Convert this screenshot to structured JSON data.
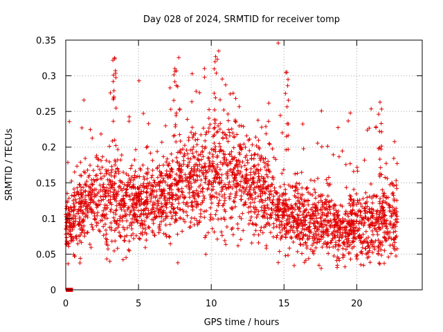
{
  "chart_data": {
    "type": "scatter",
    "title": "Day 028 of 2024, SRMTID for receiver tomp",
    "xlabel": "GPS time / hours",
    "ylabel": "SRMTID / TECUs",
    "xlim": [
      0,
      24.5
    ],
    "ylim": [
      0,
      0.35
    ],
    "xticks": [
      0,
      5,
      10,
      15,
      20
    ],
    "xtick_labels": [
      "0",
      "5",
      "10",
      "15",
      "20"
    ],
    "yticks": [
      0,
      0.05,
      0.1,
      0.15,
      0.2,
      0.25,
      0.3,
      0.35
    ],
    "ytick_labels": [
      "0",
      "0.05",
      "0.1",
      "0.15",
      "0.2",
      "0.25",
      "0.3",
      "0.35"
    ],
    "grid": true,
    "marker": "plus",
    "series_color": "#e00000",
    "envelope": {
      "hours": [
        0.0,
        1.0,
        2.0,
        3.0,
        4.0,
        5.0,
        6.0,
        7.0,
        8.0,
        9.0,
        10.0,
        11.0,
        12.0,
        13.0,
        14.0,
        15.0,
        16.0,
        17.0,
        18.0,
        19.0,
        20.0,
        21.0,
        22.0,
        22.8
      ],
      "center": [
        0.09,
        0.11,
        0.13,
        0.13,
        0.12,
        0.12,
        0.12,
        0.13,
        0.15,
        0.16,
        0.16,
        0.17,
        0.15,
        0.14,
        0.13,
        0.11,
        0.1,
        0.095,
        0.1,
        0.08,
        0.09,
        0.085,
        0.1,
        0.09
      ],
      "spread": [
        0.025,
        0.03,
        0.035,
        0.04,
        0.035,
        0.035,
        0.035,
        0.035,
        0.04,
        0.04,
        0.045,
        0.045,
        0.045,
        0.04,
        0.035,
        0.03,
        0.03,
        0.03,
        0.03,
        0.025,
        0.03,
        0.03,
        0.035,
        0.03
      ]
    },
    "points_per_hour": 120,
    "time_range_hours": [
      0.0,
      22.8
    ],
    "notable_spikes": [
      {
        "x": 3.35,
        "y": 0.325
      },
      {
        "x": 7.5,
        "y": 0.31
      },
      {
        "x": 10.3,
        "y": 0.327
      },
      {
        "x": 15.2,
        "y": 0.305
      },
      {
        "x": 21.6,
        "y": 0.263
      }
    ],
    "zero_markers": [
      {
        "x": 0.15,
        "y": 0
      },
      {
        "x": 0.25,
        "y": 0
      },
      {
        "x": 0.35,
        "y": 0
      }
    ]
  }
}
